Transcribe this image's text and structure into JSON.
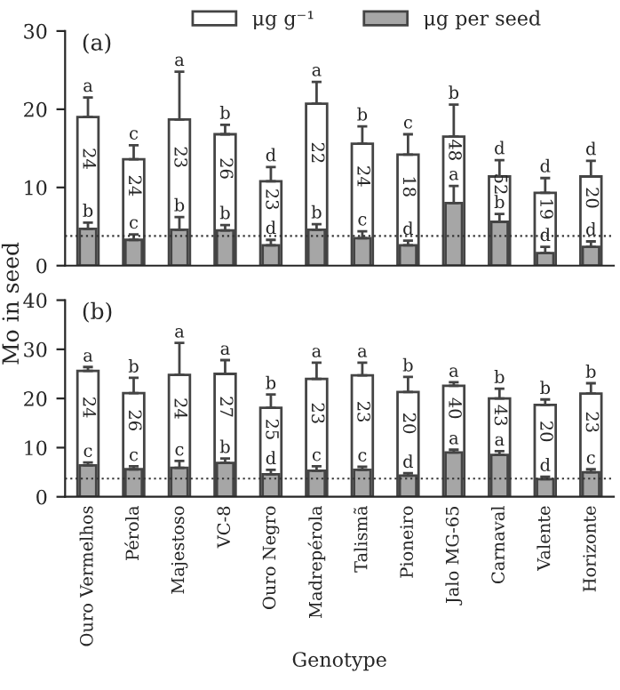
{
  "chart_data": [
    {
      "type": "bar",
      "title": "(a)",
      "ylabel": "Mo in seed",
      "legend": "top",
      "tick_labels": "y",
      "ylim": [
        0,
        30
      ],
      "yticks": [
        0,
        10,
        20,
        30
      ],
      "grid": false,
      "categories": [
        null,
        null,
        null,
        null,
        null,
        null,
        null,
        null,
        null,
        null,
        null,
        null
      ],
      "series": [
        {
          "name": "μg g⁻¹",
          "color": "#ffffff",
          "values": [
            19.0,
            13.6,
            18.7,
            16.8,
            10.8,
            20.7,
            15.6,
            14.2,
            16.5,
            11.4,
            9.3,
            11.4
          ],
          "errors": [
            [
              19.0,
              21.5
            ],
            [
              13.6,
              15.4
            ],
            [
              18.7,
              24.8
            ],
            [
              16.8,
              18.0
            ],
            [
              10.8,
              12.6
            ],
            [
              20.7,
              23.5
            ],
            [
              15.6,
              17.8
            ],
            [
              14.2,
              16.8
            ],
            [
              16.5,
              20.6
            ],
            [
              11.4,
              13.5
            ],
            [
              9.3,
              11.2
            ],
            [
              11.4,
              13.4
            ]
          ],
          "value_labels": [
            "a",
            "c",
            "a",
            "b",
            "d",
            "a",
            "b",
            "c",
            "b",
            "d",
            "d",
            "d"
          ]
        },
        {
          "name": "μg per seed",
          "color": "#a6a6a6",
          "values": [
            4.7,
            3.3,
            4.6,
            4.5,
            2.6,
            4.6,
            3.5,
            2.6,
            8.0,
            5.6,
            1.6,
            2.4
          ],
          "errors": [
            [
              4.7,
              5.5
            ],
            [
              3.3,
              4.0
            ],
            [
              4.6,
              6.2
            ],
            [
              4.5,
              5.2
            ],
            [
              2.6,
              3.3
            ],
            [
              4.6,
              5.3
            ],
            [
              3.5,
              4.4
            ],
            [
              2.6,
              3.2
            ],
            [
              8.0,
              10.2
            ],
            [
              5.6,
              6.6
            ],
            [
              1.6,
              2.4
            ],
            [
              2.4,
              3.1
            ]
          ],
          "value_labels": [
            "b",
            "c",
            "b",
            "b",
            "d",
            "b",
            "c",
            "d",
            "a",
            "b",
            "d",
            "d"
          ]
        }
      ],
      "ref_lines": [
        {
          "axis": "y",
          "value": 3.8,
          "line_style": "dotted",
          "color": "#333333"
        }
      ],
      "annotations": [
        "24",
        "24",
        "23",
        "26",
        "23",
        "22",
        "24",
        "18",
        "48",
        "52",
        "19",
        "20"
      ]
    },
    {
      "type": "bar",
      "title": "(b)",
      "xlabel": "Genotype",
      "ylim": [
        0,
        40
      ],
      "yticks": [
        0,
        10,
        20,
        30,
        40
      ],
      "grid": false,
      "categories": [
        "Ouro Vermelhos",
        "Pérola",
        "Majestoso",
        "VC-8",
        "Ouro Negro",
        "Madrepérola",
        "Talismã",
        "Pioneiro",
        "Jalo MG-65",
        "Carnaval",
        "Valente",
        "Horizonte"
      ],
      "series": [
        {
          "color": "#ffffff",
          "values": [
            25.6,
            21.1,
            24.8,
            25.0,
            18.1,
            24.0,
            24.7,
            21.3,
            22.6,
            20.0,
            18.7,
            21.0
          ],
          "errors": [
            [
              25.6,
              26.4
            ],
            [
              21.1,
              24.2
            ],
            [
              24.8,
              31.3
            ],
            [
              25.0,
              27.8
            ],
            [
              18.1,
              20.8
            ],
            [
              24.0,
              27.3
            ],
            [
              24.7,
              27.3
            ],
            [
              21.3,
              24.4
            ],
            [
              22.6,
              23.3
            ],
            [
              20.0,
              22.0
            ],
            [
              18.7,
              19.8
            ],
            [
              21.0,
              23.1
            ]
          ],
          "value_labels": [
            "a",
            "b",
            "a",
            "a",
            "b",
            "a",
            "a",
            "b",
            "a",
            "b",
            "b",
            "b"
          ]
        },
        {
          "color": "#a6a6a6",
          "values": [
            6.4,
            5.6,
            5.9,
            6.9,
            4.6,
            5.3,
            5.5,
            4.3,
            9.0,
            8.5,
            3.6,
            5.0
          ],
          "errors": [
            [
              6.4,
              7.0
            ],
            [
              5.6,
              6.2
            ],
            [
              5.9,
              7.3
            ],
            [
              6.9,
              7.8
            ],
            [
              4.6,
              5.5
            ],
            [
              5.3,
              6.2
            ],
            [
              5.5,
              6.1
            ],
            [
              4.3,
              4.8
            ],
            [
              9.0,
              9.6
            ],
            [
              8.5,
              9.3
            ],
            [
              3.6,
              4.1
            ],
            [
              5.0,
              5.6
            ]
          ],
          "value_labels": [
            "c",
            "c",
            "c",
            "b",
            "d",
            "c",
            "c",
            "d",
            "a",
            "a",
            "d",
            "c"
          ]
        }
      ],
      "ref_lines": [
        {
          "axis": "y",
          "value": 3.7,
          "line_style": "dotted",
          "color": "#333333"
        }
      ],
      "annotations": [
        "24",
        "26",
        "24",
        "27",
        "25",
        "23",
        "23",
        "20",
        "40",
        "43",
        "20",
        "23"
      ]
    }
  ]
}
